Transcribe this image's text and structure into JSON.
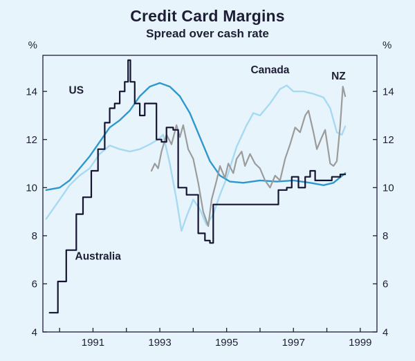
{
  "header": {
    "title": "Credit Card Margins",
    "subtitle": "Spread over cash rate"
  },
  "colors": {
    "background": "#e8f4fb",
    "axis": "#1d1d35",
    "text": "#1d1d35",
    "us": "#2e97ce",
    "canada": "#a6d9f2",
    "nz": "#9b9b9b",
    "australia": "#141432"
  },
  "chart_data": {
    "type": "line",
    "title": "Credit Card Margins",
    "subtitle": "Spread over cash rate",
    "y_unit": "%",
    "ylim": [
      4,
      15.5
    ],
    "xlim": [
      1989.5,
      1999.5
    ],
    "yticks": [
      4,
      6,
      8,
      10,
      12,
      14
    ],
    "xticks": [
      1991,
      1993,
      1995,
      1997,
      1999
    ],
    "grid": false,
    "legend_position": "inline-annotations",
    "series": [
      {
        "name": "Canada",
        "color_key": "canada",
        "width": 2.4,
        "points": [
          [
            1989.6,
            8.7
          ],
          [
            1990.0,
            9.5
          ],
          [
            1990.3,
            10.1
          ],
          [
            1990.6,
            10.5
          ],
          [
            1990.9,
            10.8
          ],
          [
            1991.2,
            11.4
          ],
          [
            1991.5,
            11.75
          ],
          [
            1991.8,
            11.6
          ],
          [
            1992.1,
            11.5
          ],
          [
            1992.4,
            11.6
          ],
          [
            1992.7,
            11.8
          ],
          [
            1992.95,
            12.0
          ],
          [
            1993.1,
            12.2
          ],
          [
            1993.3,
            11.0
          ],
          [
            1993.5,
            9.5
          ],
          [
            1993.65,
            8.2
          ],
          [
            1993.8,
            8.8
          ],
          [
            1994.0,
            9.5
          ],
          [
            1994.2,
            9.1
          ],
          [
            1994.4,
            8.45
          ],
          [
            1994.6,
            8.9
          ],
          [
            1994.8,
            9.7
          ],
          [
            1995.0,
            10.4
          ],
          [
            1995.3,
            11.7
          ],
          [
            1995.6,
            12.6
          ],
          [
            1995.8,
            13.1
          ],
          [
            1996.0,
            13.0
          ],
          [
            1996.3,
            13.5
          ],
          [
            1996.6,
            14.1
          ],
          [
            1996.8,
            14.25
          ],
          [
            1997.0,
            14.0
          ],
          [
            1997.3,
            14.0
          ],
          [
            1997.6,
            13.9
          ],
          [
            1997.9,
            13.75
          ],
          [
            1998.1,
            13.3
          ],
          [
            1998.3,
            12.3
          ],
          [
            1998.45,
            12.2
          ],
          [
            1998.55,
            12.55
          ]
        ]
      },
      {
        "name": "US",
        "color_key": "us",
        "width": 2.4,
        "points": [
          [
            1989.6,
            9.9
          ],
          [
            1990.0,
            10.0
          ],
          [
            1990.3,
            10.3
          ],
          [
            1990.6,
            10.8
          ],
          [
            1990.9,
            11.3
          ],
          [
            1991.2,
            11.9
          ],
          [
            1991.5,
            12.5
          ],
          [
            1991.8,
            12.8
          ],
          [
            1992.1,
            13.2
          ],
          [
            1992.4,
            13.8
          ],
          [
            1992.7,
            14.2
          ],
          [
            1993.0,
            14.35
          ],
          [
            1993.3,
            14.2
          ],
          [
            1993.6,
            13.8
          ],
          [
            1993.9,
            13.1
          ],
          [
            1994.2,
            12.1
          ],
          [
            1994.5,
            11.1
          ],
          [
            1994.8,
            10.5
          ],
          [
            1995.1,
            10.25
          ],
          [
            1995.5,
            10.2
          ],
          [
            1996.0,
            10.3
          ],
          [
            1996.5,
            10.25
          ],
          [
            1997.0,
            10.3
          ],
          [
            1997.5,
            10.2
          ],
          [
            1997.9,
            10.1
          ],
          [
            1998.2,
            10.2
          ],
          [
            1998.55,
            10.6
          ]
        ]
      },
      {
        "name": "NZ",
        "color_key": "nz",
        "width": 2.2,
        "points": [
          [
            1992.75,
            10.7
          ],
          [
            1992.85,
            11.0
          ],
          [
            1992.95,
            10.8
          ],
          [
            1993.05,
            11.5
          ],
          [
            1993.2,
            12.2
          ],
          [
            1993.35,
            11.8
          ],
          [
            1993.5,
            12.6
          ],
          [
            1993.6,
            12.1
          ],
          [
            1993.7,
            12.6
          ],
          [
            1993.85,
            11.6
          ],
          [
            1994.0,
            11.2
          ],
          [
            1994.15,
            10.2
          ],
          [
            1994.3,
            9.0
          ],
          [
            1994.45,
            8.4
          ],
          [
            1994.55,
            9.5
          ],
          [
            1994.7,
            10.3
          ],
          [
            1994.8,
            10.9
          ],
          [
            1994.95,
            10.4
          ],
          [
            1995.05,
            11.0
          ],
          [
            1995.2,
            10.6
          ],
          [
            1995.3,
            11.2
          ],
          [
            1995.45,
            11.5
          ],
          [
            1995.55,
            10.9
          ],
          [
            1995.7,
            11.4
          ],
          [
            1995.85,
            11.0
          ],
          [
            1996.0,
            10.8
          ],
          [
            1996.15,
            10.3
          ],
          [
            1996.3,
            10.0
          ],
          [
            1996.45,
            10.5
          ],
          [
            1996.6,
            10.3
          ],
          [
            1996.75,
            11.2
          ],
          [
            1996.9,
            11.8
          ],
          [
            1997.05,
            12.5
          ],
          [
            1997.2,
            12.3
          ],
          [
            1997.35,
            13.0
          ],
          [
            1997.45,
            13.2
          ],
          [
            1997.6,
            12.3
          ],
          [
            1997.7,
            11.6
          ],
          [
            1997.85,
            12.1
          ],
          [
            1997.95,
            12.4
          ],
          [
            1998.1,
            11.0
          ],
          [
            1998.2,
            10.9
          ],
          [
            1998.3,
            11.1
          ],
          [
            1998.4,
            12.6
          ],
          [
            1998.48,
            14.2
          ],
          [
            1998.55,
            13.8
          ]
        ]
      },
      {
        "name": "Australia",
        "color_key": "australia",
        "width": 2.2,
        "points": [
          [
            1989.7,
            4.8
          ],
          [
            1989.95,
            4.8
          ],
          [
            1989.95,
            6.1
          ],
          [
            1990.2,
            6.1
          ],
          [
            1990.2,
            7.4
          ],
          [
            1990.5,
            7.4
          ],
          [
            1990.5,
            8.9
          ],
          [
            1990.7,
            8.9
          ],
          [
            1990.7,
            9.6
          ],
          [
            1990.95,
            9.6
          ],
          [
            1990.95,
            10.7
          ],
          [
            1991.15,
            10.7
          ],
          [
            1991.15,
            11.6
          ],
          [
            1991.35,
            11.6
          ],
          [
            1991.35,
            12.7
          ],
          [
            1991.5,
            12.7
          ],
          [
            1991.5,
            13.3
          ],
          [
            1991.65,
            13.3
          ],
          [
            1991.65,
            13.5
          ],
          [
            1991.8,
            13.5
          ],
          [
            1991.8,
            14.0
          ],
          [
            1991.95,
            14.0
          ],
          [
            1991.95,
            14.4
          ],
          [
            1992.05,
            14.4
          ],
          [
            1992.05,
            15.3
          ],
          [
            1992.12,
            15.3
          ],
          [
            1992.12,
            14.4
          ],
          [
            1992.25,
            14.4
          ],
          [
            1992.25,
            13.5
          ],
          [
            1992.4,
            13.5
          ],
          [
            1992.4,
            13.0
          ],
          [
            1992.55,
            13.0
          ],
          [
            1992.55,
            13.5
          ],
          [
            1992.9,
            13.5
          ],
          [
            1992.9,
            12.0
          ],
          [
            1993.05,
            12.0
          ],
          [
            1993.05,
            11.9
          ],
          [
            1993.2,
            11.9
          ],
          [
            1993.2,
            12.5
          ],
          [
            1993.4,
            12.5
          ],
          [
            1993.4,
            12.4
          ],
          [
            1993.55,
            12.4
          ],
          [
            1993.55,
            10.0
          ],
          [
            1993.8,
            10.0
          ],
          [
            1993.8,
            9.7
          ],
          [
            1994.15,
            9.7
          ],
          [
            1994.15,
            8.1
          ],
          [
            1994.35,
            8.1
          ],
          [
            1994.35,
            7.8
          ],
          [
            1994.5,
            7.8
          ],
          [
            1994.5,
            7.7
          ],
          [
            1994.6,
            7.7
          ],
          [
            1994.6,
            9.3
          ],
          [
            1996.55,
            9.3
          ],
          [
            1996.55,
            9.9
          ],
          [
            1996.8,
            9.9
          ],
          [
            1996.8,
            10.0
          ],
          [
            1996.95,
            10.0
          ],
          [
            1996.95,
            10.45
          ],
          [
            1997.15,
            10.45
          ],
          [
            1997.15,
            10.0
          ],
          [
            1997.35,
            10.0
          ],
          [
            1997.35,
            10.45
          ],
          [
            1997.5,
            10.45
          ],
          [
            1997.5,
            10.7
          ],
          [
            1997.65,
            10.7
          ],
          [
            1997.65,
            10.3
          ],
          [
            1998.15,
            10.3
          ],
          [
            1998.15,
            10.45
          ],
          [
            1998.4,
            10.45
          ],
          [
            1998.4,
            10.55
          ],
          [
            1998.55,
            10.55
          ]
        ]
      }
    ],
    "annotations": [
      {
        "label": "US",
        "x": 1990.5,
        "y": 13.9
      },
      {
        "label": "Canada",
        "x": 1996.3,
        "y": 14.75
      },
      {
        "label": "NZ",
        "x": 1998.35,
        "y": 14.5
      },
      {
        "label": "Australia",
        "x": 1991.15,
        "y": 7.0
      }
    ]
  }
}
